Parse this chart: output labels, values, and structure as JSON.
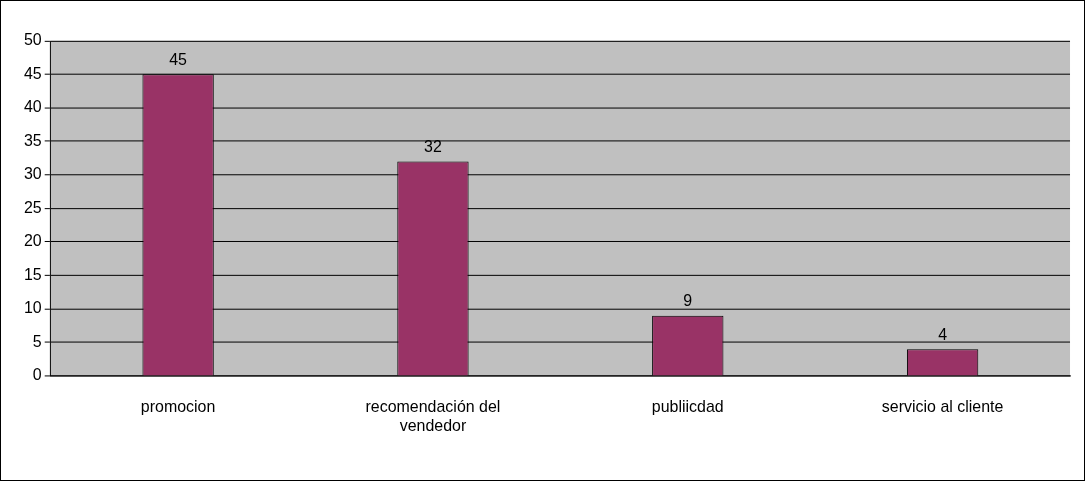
{
  "chart_data": {
    "type": "bar",
    "categories": [
      "promocion",
      "recomendación del vendedor",
      "publiicdad",
      "servicio al cliente"
    ],
    "values": [
      45,
      32,
      9,
      4
    ],
    "color": "#993366",
    "ylim": [
      0,
      50
    ],
    "yticks": [
      0,
      5,
      10,
      15,
      20,
      25,
      30,
      35,
      40,
      45,
      50
    ],
    "grid": "y",
    "legend": false,
    "data_labels": true
  }
}
